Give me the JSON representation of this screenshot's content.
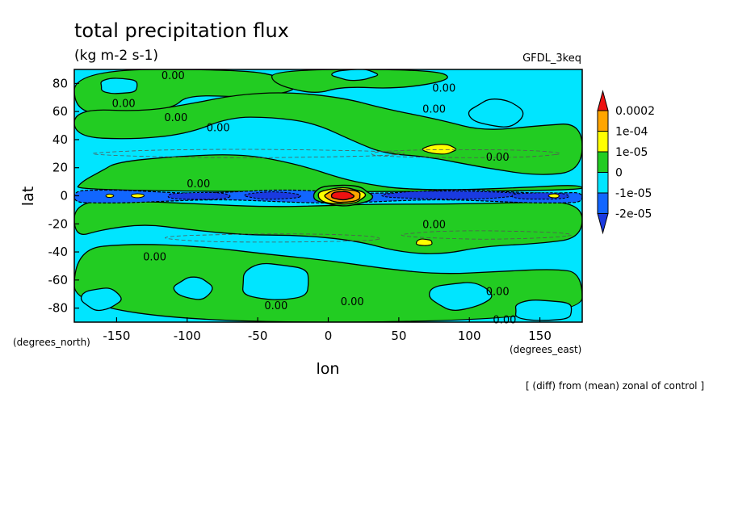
{
  "chart_data": {
    "type": "heatmap",
    "title": "total precipitation flux",
    "units": "(kg m-2 s-1)",
    "model": "GFDL_3keq",
    "xlabel": "lon",
    "ylabel": "lat",
    "x_unit_label": "(degrees_east)",
    "y_unit_label": "(degrees_north)",
    "xlim": [
      -180,
      180
    ],
    "ylim": [
      -90,
      90
    ],
    "x_ticks": [
      {
        "value": -150,
        "label": "-150"
      },
      {
        "value": -100,
        "label": "-100"
      },
      {
        "value": -50,
        "label": "-50"
      },
      {
        "value": 0,
        "label": "0"
      },
      {
        "value": 50,
        "label": "50"
      },
      {
        "value": 100,
        "label": "100"
      },
      {
        "value": 150,
        "label": "150"
      }
    ],
    "y_ticks": [
      {
        "value": -80,
        "label": "-80"
      },
      {
        "value": -60,
        "label": "-60"
      },
      {
        "value": -40,
        "label": "-40"
      },
      {
        "value": -20,
        "label": "-20"
      },
      {
        "value": 0,
        "label": "0"
      },
      {
        "value": 20,
        "label": "20"
      },
      {
        "value": 40,
        "label": "40"
      },
      {
        "value": 60,
        "label": "60"
      },
      {
        "value": 80,
        "label": "80"
      }
    ],
    "contour_labels": [
      {
        "lon": -110,
        "lat": 86,
        "text": "0.00"
      },
      {
        "lon": -145,
        "lat": 66,
        "text": "0.00"
      },
      {
        "lon": -108,
        "lat": 56,
        "text": "0.00"
      },
      {
        "lon": -78,
        "lat": 49,
        "text": "0.00"
      },
      {
        "lon": 82,
        "lat": 77,
        "text": "0.00"
      },
      {
        "lon": 75,
        "lat": 62,
        "text": "0.00"
      },
      {
        "lon": 120,
        "lat": 28,
        "text": "0.00"
      },
      {
        "lon": -92,
        "lat": 9,
        "text": "0.00"
      },
      {
        "lon": 75,
        "lat": -20,
        "text": "0.00"
      },
      {
        "lon": -123,
        "lat": -43,
        "text": "0.00"
      },
      {
        "lon": 120,
        "lat": -68,
        "text": "0.00"
      },
      {
        "lon": 17,
        "lat": -75,
        "text": "0.00"
      },
      {
        "lon": -37,
        "lat": -78,
        "text": "0.00"
      },
      {
        "lon": 125,
        "lat": -88,
        "text": "0.00"
      }
    ],
    "legend": {
      "placement": "right",
      "levels": [
        "0.0002",
        "1e-04",
        "1e-05",
        "0",
        "-1e-05",
        "-2e-05"
      ],
      "colors": [
        "#ee1111",
        "#ffa500",
        "#ffff00",
        "#22cc22",
        "#00e5ff",
        "#1166ff",
        "#1a3ae0"
      ]
    },
    "colors": {
      "neg_strong": "#1a3ae0",
      "neg_mid": "#1166ff",
      "neg_weak": "#00e5ff",
      "pos_weak": "#22cc22",
      "pos_mid": "#ffff00",
      "pos_high": "#ffa500",
      "pos_max": "#ee1111"
    },
    "field_features": [
      {
        "kind": "equatorial-negative-band",
        "lon_range": [
          -180,
          180
        ],
        "lat_range": [
          -5,
          5
        ],
        "level": "-2e-05"
      },
      {
        "kind": "maximum",
        "lon": 10,
        "lat": 0,
        "level": "0.0002"
      },
      {
        "kind": "positive-patch",
        "lon": 80,
        "lat": 33,
        "level": "1e-05"
      },
      {
        "kind": "positive-patch",
        "lon": 68,
        "lat": -33,
        "level": "1e-05"
      }
    ]
  },
  "footer_note": "[ (diff) from (mean) zonal of control ]"
}
